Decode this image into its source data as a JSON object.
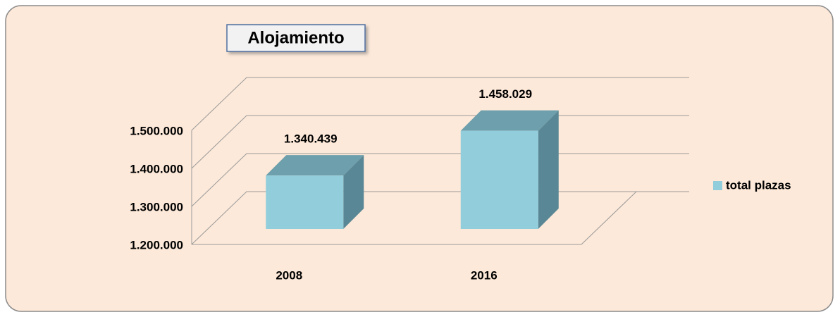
{
  "chart_data": {
    "type": "bar3d",
    "title": "Alojamiento",
    "categories": [
      "2008",
      "2016"
    ],
    "series": [
      {
        "name": "total plazas",
        "color": "#92cddc",
        "values": [
          1340439,
          1458029
        ],
        "value_labels": [
          "1.340.439",
          "1.458.029"
        ]
      }
    ],
    "ylim": [
      1200000,
      1500000
    ],
    "yticks": [
      {
        "value": 1200000,
        "label": "1.200.000"
      },
      {
        "value": 1300000,
        "label": "1.300.000"
      },
      {
        "value": 1400000,
        "label": "1.400.000"
      },
      {
        "value": 1500000,
        "label": "1.500.000"
      }
    ],
    "grid": true,
    "legend": "right"
  }
}
